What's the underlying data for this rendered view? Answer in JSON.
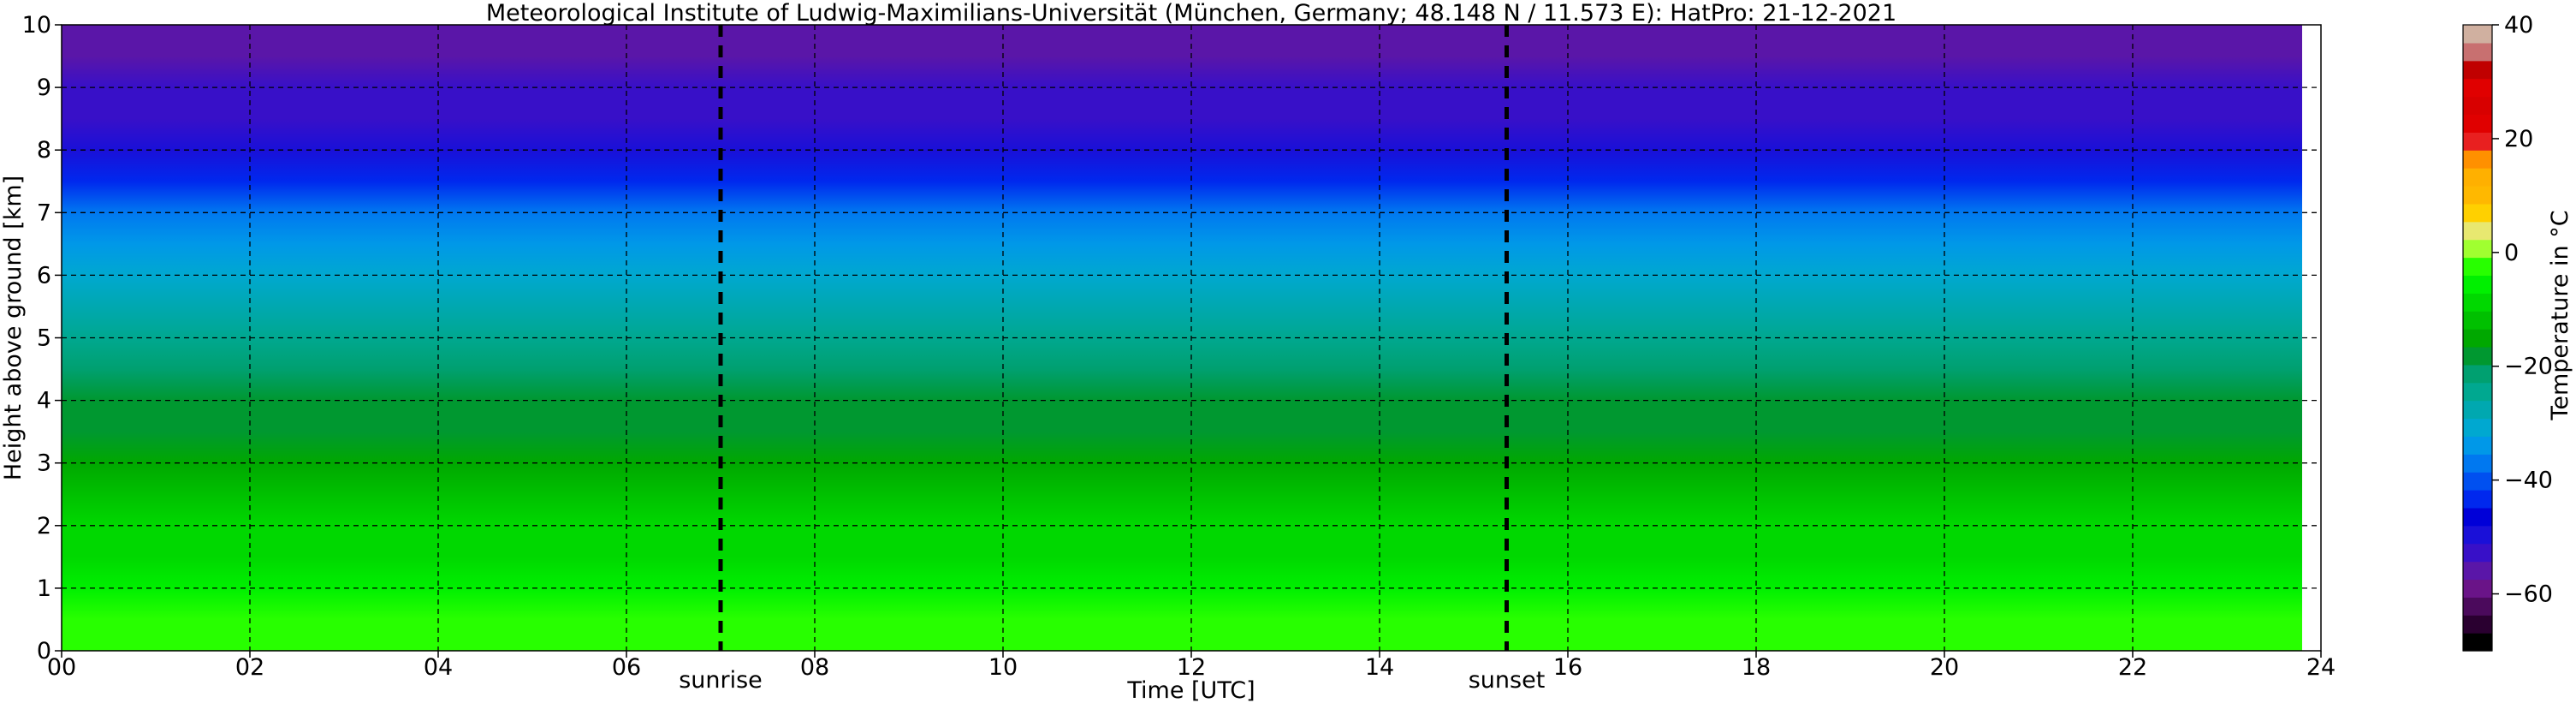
{
  "chart_data": {
    "type": "heatmap",
    "title": "Meteorological Institute of Ludwig-Maximilians-Universität (München, Germany; 48.148 N / 11.573 E):    HatPro: 21-12-2021",
    "xlabel": "Time [UTC]",
    "ylabel": "Height above ground [km]",
    "xlim": [
      0,
      24
    ],
    "ylim": [
      0,
      10
    ],
    "x_ticks": [
      0,
      2,
      4,
      6,
      8,
      10,
      12,
      14,
      16,
      18,
      20,
      22,
      24
    ],
    "x_tick_labels": [
      "00",
      "02",
      "04",
      "06",
      "08",
      "10",
      "12",
      "14",
      "16",
      "18",
      "20",
      "22",
      "24"
    ],
    "y_ticks": [
      0,
      1,
      2,
      3,
      4,
      5,
      6,
      7,
      8,
      9,
      10
    ],
    "y_tick_labels": [
      "0",
      "1",
      "2",
      "3",
      "4",
      "5",
      "6",
      "7",
      "8",
      "9",
      "10"
    ],
    "grid": true,
    "data_end_hour": 23.8,
    "markers": [
      {
        "label": "sunrise",
        "x": 7.0
      },
      {
        "label": "sunset",
        "x": 15.35
      }
    ],
    "colorbar": {
      "label": "Temperature in °C",
      "vmin": -70,
      "vmax": 40,
      "ticks": [
        -60,
        -40,
        -20,
        0,
        20,
        40
      ],
      "tick_labels": [
        "−60",
        "−40",
        "−20",
        "0",
        "20",
        "40"
      ],
      "colors": [
        "#000000",
        "#2a0030",
        "#4b0a5c",
        "#6a1488",
        "#5a16a8",
        "#3810c8",
        "#1a10d8",
        "#0000d8",
        "#0028ee",
        "#0050f0",
        "#0078f0",
        "#0098e8",
        "#00a8d0",
        "#00a8b0",
        "#00a890",
        "#00a070",
        "#009830",
        "#00a800",
        "#00c000",
        "#00d800",
        "#00f000",
        "#28ff00",
        "#a0ff30",
        "#e8e870",
        "#ffd000",
        "#ffb800",
        "#ffb000",
        "#ff9000",
        "#e82020",
        "#e00000",
        "#d80000",
        "#e00000",
        "#c00000",
        "#c87070",
        "#d0b0a0"
      ]
    },
    "profile": {
      "heights_km": [
        0,
        0.5,
        1,
        1.5,
        2,
        2.5,
        3,
        3.5,
        4,
        4.5,
        5,
        5.5,
        6,
        6.5,
        7,
        7.5,
        8,
        8.5,
        9,
        9.5,
        10
      ],
      "temperature_c": [
        -1,
        -3,
        -5,
        -8,
        -10,
        -12,
        -15,
        -17,
        -19,
        -22,
        -25,
        -28,
        -30,
        -34,
        -38,
        -43,
        -50,
        -52,
        -52,
        -56,
        -57
      ]
    }
  }
}
